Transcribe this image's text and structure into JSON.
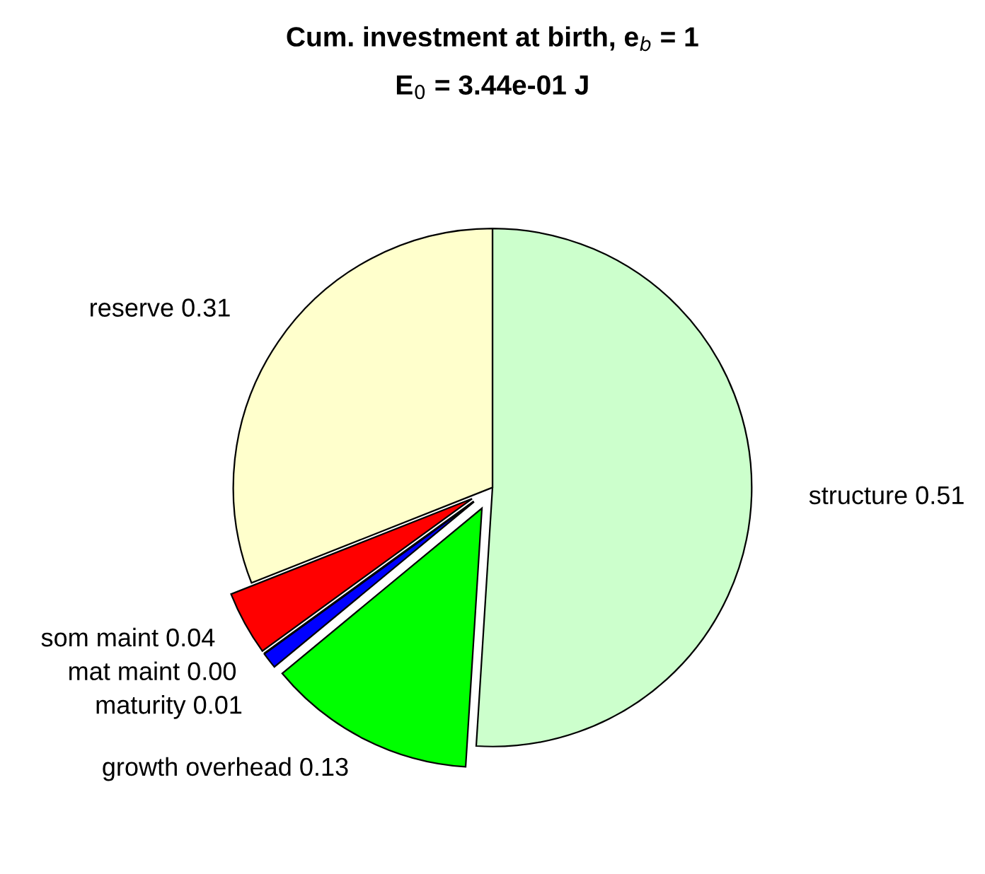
{
  "chart_data": {
    "type": "pie",
    "title": "Cum. investment at birth, e$_{b}$ = 1",
    "subtitle": "E$_{0}$ = 3.44e-01 J",
    "categories": [
      "structure",
      "growth overhead",
      "maturity",
      "mat maint",
      "som maint",
      "reserve"
    ],
    "values": [
      0.51,
      0.13,
      0.01,
      0.0,
      0.04,
      0.31
    ],
    "value_labels": [
      "0.51",
      "0.13",
      "0.01",
      "0.00",
      "0.04",
      "0.31"
    ],
    "colors": [
      "#ccffcc",
      "#00ff00",
      "#0000ff",
      "#ff00ff",
      "#ff0000",
      "#ffffcc"
    ]
  }
}
